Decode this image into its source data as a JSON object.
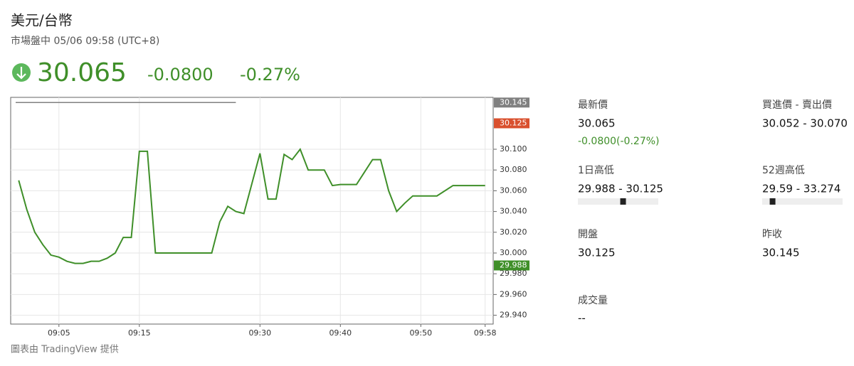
{
  "header": {
    "title": "美元/台幣",
    "subtitle": "市場盤中 05/06 09:58 (UTC+8)",
    "price": "30.065",
    "change": "-0.0800",
    "change_pct": "-0.27%"
  },
  "chart_data": {
    "type": "line",
    "color": "#3f8f29",
    "grid": true,
    "x": [
      "09:00",
      "09:01",
      "09:02",
      "09:03",
      "09:04",
      "09:05",
      "09:06",
      "09:07",
      "09:08",
      "09:09",
      "09:10",
      "09:11",
      "09:12",
      "09:13",
      "09:14",
      "09:15",
      "09:16",
      "09:17",
      "09:24",
      "09:25",
      "09:26",
      "09:27",
      "09:28",
      "09:30",
      "09:31",
      "09:32",
      "09:33",
      "09:34",
      "09:35",
      "09:36",
      "09:38",
      "09:39",
      "09:40",
      "09:42",
      "09:44",
      "09:45",
      "09:46",
      "09:47",
      "09:48",
      "09:49",
      "09:52",
      "09:54",
      "09:58"
    ],
    "values": [
      30.07,
      30.042,
      30.02,
      30.008,
      29.998,
      29.996,
      29.992,
      29.99,
      29.99,
      29.992,
      29.992,
      29.995,
      30.0,
      30.015,
      30.015,
      30.098,
      30.098,
      30.0,
      30.0,
      30.03,
      30.045,
      30.04,
      30.038,
      30.096,
      30.052,
      30.052,
      30.095,
      30.09,
      30.1,
      30.08,
      30.08,
      30.065,
      30.066,
      30.066,
      30.09,
      30.09,
      30.06,
      30.04,
      30.048,
      30.055,
      30.055,
      30.065,
      30.065
    ],
    "xlim": [
      "08:59",
      "09:59"
    ],
    "xticks": [
      "09:05",
      "09:15",
      "09:30",
      "09:40",
      "09:50",
      "09:58"
    ],
    "ylim": [
      29.9315,
      30.15
    ],
    "yticks": [
      {
        "value": 29.94,
        "label": "29.940"
      },
      {
        "value": 29.96,
        "label": "29.960"
      },
      {
        "value": 29.98,
        "label": "29.980"
      },
      {
        "value": 30.0,
        "label": "30.000"
      },
      {
        "value": 30.02,
        "label": "30.020"
      },
      {
        "value": 30.04,
        "label": "30.040"
      },
      {
        "value": 30.06,
        "label": "30.060"
      },
      {
        "value": 30.08,
        "label": "30.080"
      },
      {
        "value": 30.1,
        "label": "30.100"
      }
    ],
    "price_tags": [
      {
        "value": 30.145,
        "label": "30.145",
        "color": "#808080"
      },
      {
        "value": 30.125,
        "label": "30.125",
        "color": "#d9502e"
      },
      {
        "value": 29.988,
        "label": "29.988",
        "color": "#3f8f29"
      }
    ]
  },
  "stats": {
    "latest_label": "最新價",
    "latest": 30.065,
    "latest_change": "-0.0800(-0.27%)",
    "bidask_label": "買進價 - 賣出價",
    "bidask": "30.052 - 30.070",
    "day_label": "1日高低",
    "day_range": "29.988 - 30.125",
    "day_low": 29.988,
    "day_high": 30.125,
    "year_label": "52週高低",
    "year_range": "29.59 - 33.274",
    "year_low": 29.59,
    "year_high": 33.274,
    "open_label": "開盤",
    "open": "30.125",
    "prev_label": "昨收",
    "prev": "30.145",
    "volume_label": "成交量",
    "volume": "--"
  },
  "footer": "圖表由 TradingView 提供"
}
